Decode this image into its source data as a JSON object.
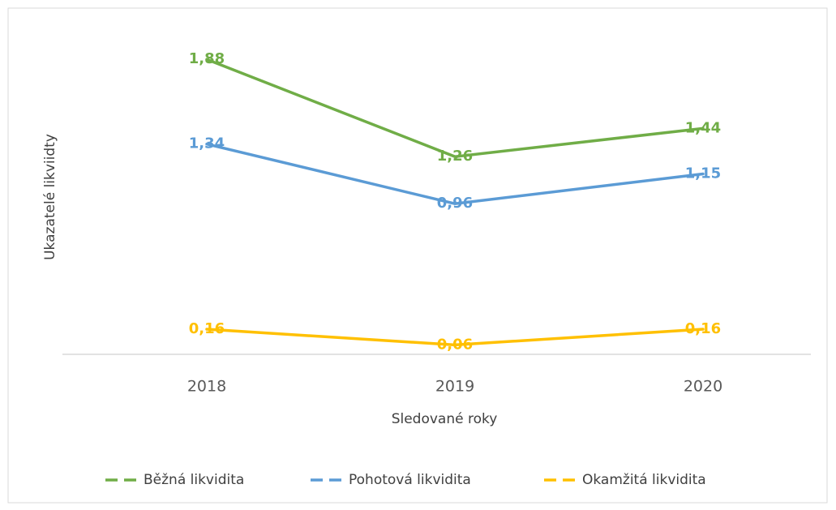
{
  "chart_data": {
    "type": "line",
    "x_label": "Sledované roky",
    "y_label": "Ukazatelé likviidty",
    "categories": [
      "2018",
      "2019",
      "2020"
    ],
    "series": [
      {
        "name": "Běžná likvidita",
        "color": "#70ad47",
        "values": [
          1.88,
          1.26,
          1.44
        ],
        "value_labels": [
          "1,88",
          "1,26",
          "1,44"
        ]
      },
      {
        "name": "Pohotová likvidita",
        "color": "#5b9bd5",
        "values": [
          1.34,
          0.96,
          1.15
        ],
        "value_labels": [
          "1,34",
          "0,96",
          "1,15"
        ]
      },
      {
        "name": "Okamžitá likvidita",
        "color": "#ffc000",
        "values": [
          0.16,
          0.06,
          0.16
        ],
        "value_labels": [
          "0,16",
          "0,06",
          "0,16"
        ]
      }
    ],
    "ylim": [
      0,
      2
    ],
    "legend": "bottom"
  }
}
